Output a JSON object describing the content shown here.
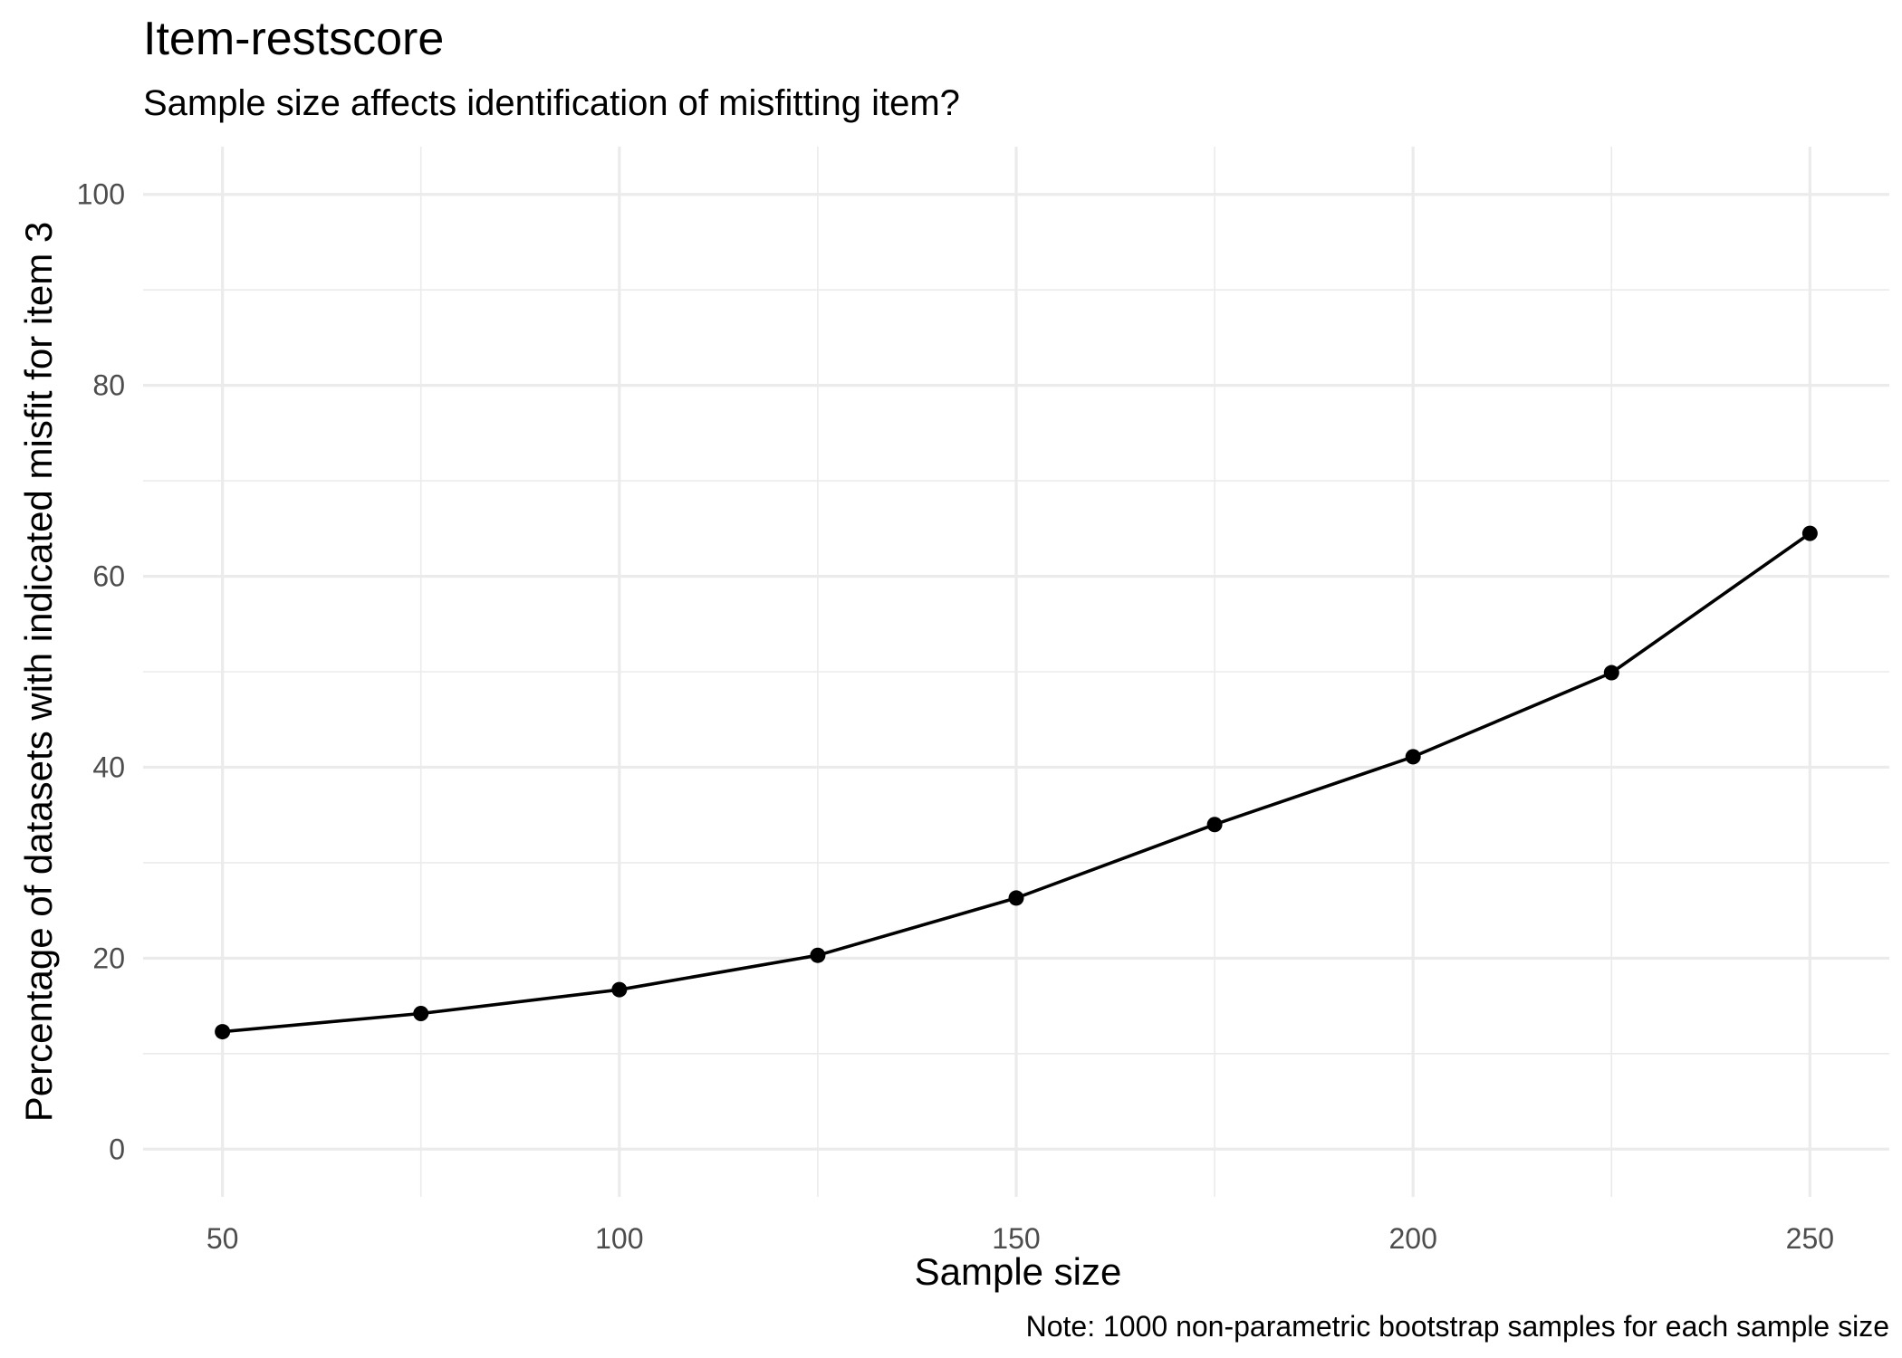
{
  "chart_data": {
    "type": "line",
    "title": "Item-restscore",
    "subtitle": "Sample size affects identification of misfitting item?",
    "xlabel": "Sample size",
    "ylabel": "Percentage of datasets with indicated misfit for item 3",
    "caption": "Note: 1000 non-parametric bootstrap samples for each sample size",
    "x": [
      50,
      75,
      100,
      125,
      150,
      175,
      200,
      225,
      250
    ],
    "y": [
      12.3,
      14.2,
      16.7,
      20.3,
      26.3,
      34.0,
      41.1,
      49.9,
      64.5
    ],
    "xlim": [
      40,
      260
    ],
    "ylim": [
      -5,
      105
    ],
    "x_major_ticks": [
      50,
      100,
      150,
      200,
      250
    ],
    "x_minor_ticks": [
      75,
      125,
      175,
      225
    ],
    "y_major_ticks": [
      0,
      20,
      40,
      60,
      80,
      100
    ],
    "y_minor_ticks": [
      10,
      30,
      50,
      70,
      90
    ],
    "grid": true,
    "legend": "none",
    "line_color": "#000000",
    "grid_color": "#ebebeb"
  }
}
